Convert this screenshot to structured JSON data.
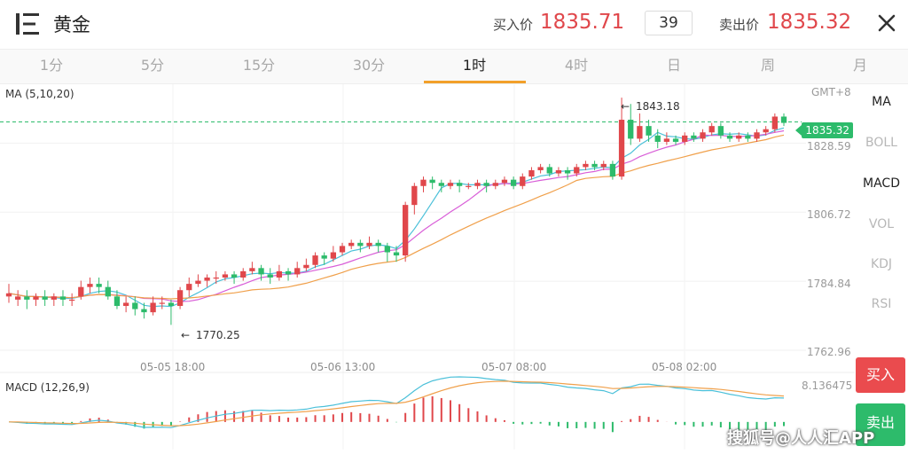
{
  "header": {
    "title": "黄金",
    "buy_label": "买入价",
    "buy_price": "1835.71",
    "spread": "39",
    "sell_label": "卖出价",
    "sell_price": "1835.32",
    "icons": {
      "menu": "menu-icon",
      "close": "close-icon"
    }
  },
  "tabs": [
    "1分",
    "5分",
    "15分",
    "30分",
    "1时",
    "4时",
    "日",
    "周",
    "月"
  ],
  "active_tab": "1时",
  "chart_legend": {
    "ma": "MA (5,10,20)",
    "macd": "MACD (12,26,9)"
  },
  "timezone": "GMT+8",
  "current_price_tag": "1835.32",
  "indicators": [
    {
      "label": "MA",
      "active": true
    },
    {
      "label": "BOLL",
      "active": false
    },
    {
      "label": "MACD",
      "active": true
    },
    {
      "label": "VOL",
      "active": false
    },
    {
      "label": "KDJ",
      "active": false
    },
    {
      "label": "RSI",
      "active": false
    }
  ],
  "buttons": {
    "buy": "买入",
    "sell": "卖出"
  },
  "watermark": "搜狐号@人人汇APP",
  "colors": {
    "up": "#e0474b",
    "down": "#2dbb6b",
    "ma5": "#4bc0d9",
    "ma10": "#d95fd8",
    "ma20": "#f0a04b",
    "accent": "#f2a02a"
  },
  "chart_data": {
    "type": "candlestick",
    "y_axis_labels": [
      "1843.18",
      "1828.59",
      "1806.72",
      "1784.84",
      "1762.96"
    ],
    "y_ticks": [
      1828.59,
      1806.72,
      1784.84,
      1762.96
    ],
    "x_axis_labels": [
      "05-05 18:00",
      "05-06 13:00",
      "05-07 08:00",
      "05-08 02:00"
    ],
    "high_annotation": "1843.18",
    "low_annotation": "1770.25",
    "macd_value_label": "8.136475",
    "current_price": 1835.32,
    "candles": [
      [
        1780,
        1781,
        1778,
        1784
      ],
      [
        1779,
        1780,
        1777,
        1782
      ],
      [
        1780,
        1779,
        1776,
        1782
      ],
      [
        1779,
        1780,
        1777,
        1781
      ],
      [
        1780,
        1779,
        1777,
        1782
      ],
      [
        1779,
        1780,
        1777,
        1781
      ],
      [
        1780,
        1779,
        1777,
        1782
      ],
      [
        1779,
        1779,
        1777,
        1781
      ],
      [
        1780,
        1783,
        1779,
        1785
      ],
      [
        1783,
        1784,
        1781,
        1786
      ],
      [
        1784,
        1783,
        1781,
        1786
      ],
      [
        1783,
        1780,
        1779,
        1785
      ],
      [
        1780,
        1777,
        1776,
        1782
      ],
      [
        1777,
        1778,
        1775,
        1780
      ],
      [
        1778,
        1776,
        1774,
        1780
      ],
      [
        1776,
        1775,
        1773,
        1778
      ],
      [
        1775,
        1778,
        1774,
        1780
      ],
      [
        1778,
        1778,
        1776,
        1780
      ],
      [
        1778,
        1777,
        1771,
        1779
      ],
      [
        1777,
        1782,
        1776,
        1783
      ],
      [
        1782,
        1784,
        1780,
        1786
      ],
      [
        1784,
        1785,
        1783,
        1787
      ],
      [
        1785,
        1786,
        1783,
        1787
      ],
      [
        1786,
        1786,
        1784,
        1788
      ],
      [
        1786,
        1787,
        1785,
        1788
      ],
      [
        1787,
        1786,
        1784,
        1788
      ],
      [
        1786,
        1788,
        1785,
        1789
      ],
      [
        1788,
        1789,
        1787,
        1791
      ],
      [
        1789,
        1787,
        1785,
        1790
      ],
      [
        1787,
        1786,
        1784,
        1789
      ],
      [
        1786,
        1788,
        1785,
        1790
      ],
      [
        1788,
        1787,
        1785,
        1789
      ],
      [
        1787,
        1789,
        1786,
        1791
      ],
      [
        1789,
        1790,
        1788,
        1792
      ],
      [
        1790,
        1793,
        1789,
        1794
      ],
      [
        1793,
        1792,
        1790,
        1794
      ],
      [
        1792,
        1794,
        1791,
        1796
      ],
      [
        1794,
        1796,
        1793,
        1797
      ],
      [
        1796,
        1797,
        1795,
        1798
      ],
      [
        1797,
        1796,
        1794,
        1798
      ],
      [
        1796,
        1797,
        1795,
        1799
      ],
      [
        1797,
        1796,
        1794,
        1798
      ],
      [
        1796,
        1794,
        1791,
        1797
      ],
      [
        1794,
        1793,
        1791,
        1796
      ],
      [
        1793,
        1809,
        1791,
        1810
      ],
      [
        1809,
        1815,
        1806,
        1816
      ],
      [
        1815,
        1817,
        1813,
        1818
      ],
      [
        1817,
        1816,
        1814,
        1818
      ],
      [
        1816,
        1815,
        1813,
        1817
      ],
      [
        1815,
        1816,
        1814,
        1817
      ],
      [
        1816,
        1815,
        1813,
        1817
      ],
      [
        1815,
        1815,
        1814,
        1816
      ],
      [
        1815,
        1816,
        1814,
        1817
      ],
      [
        1816,
        1815,
        1813,
        1817
      ],
      [
        1815,
        1816,
        1814,
        1817
      ],
      [
        1816,
        1817,
        1815,
        1818
      ],
      [
        1817,
        1815,
        1814,
        1818
      ],
      [
        1815,
        1818,
        1814,
        1819
      ],
      [
        1818,
        1820,
        1817,
        1821
      ],
      [
        1820,
        1821,
        1819,
        1822
      ],
      [
        1821,
        1819,
        1818,
        1822
      ],
      [
        1819,
        1820,
        1818,
        1821
      ],
      [
        1820,
        1819,
        1817,
        1821
      ],
      [
        1819,
        1821,
        1818,
        1822
      ],
      [
        1821,
        1822,
        1820,
        1823
      ],
      [
        1822,
        1821,
        1820,
        1823
      ],
      [
        1821,
        1822,
        1820,
        1823
      ],
      [
        1822,
        1818,
        1817,
        1823
      ],
      [
        1818,
        1836,
        1817,
        1843
      ],
      [
        1836,
        1830,
        1828,
        1841
      ],
      [
        1830,
        1834,
        1829,
        1838
      ],
      [
        1834,
        1831,
        1829,
        1836
      ],
      [
        1831,
        1829,
        1827,
        1833
      ],
      [
        1829,
        1830,
        1828,
        1832
      ],
      [
        1830,
        1829,
        1828,
        1831
      ],
      [
        1829,
        1831,
        1828,
        1832
      ],
      [
        1831,
        1830,
        1829,
        1832
      ],
      [
        1830,
        1832,
        1829,
        1833
      ],
      [
        1832,
        1834,
        1831,
        1835
      ],
      [
        1834,
        1831,
        1830,
        1835
      ],
      [
        1831,
        1830,
        1829,
        1832
      ],
      [
        1830,
        1831,
        1829,
        1832
      ],
      [
        1831,
        1830,
        1829,
        1832
      ],
      [
        1830,
        1832,
        1829,
        1833
      ],
      [
        1832,
        1833,
        1831,
        1834
      ],
      [
        1833,
        1837,
        1832,
        1838
      ],
      [
        1837,
        1835,
        1834,
        1838
      ]
    ]
  }
}
